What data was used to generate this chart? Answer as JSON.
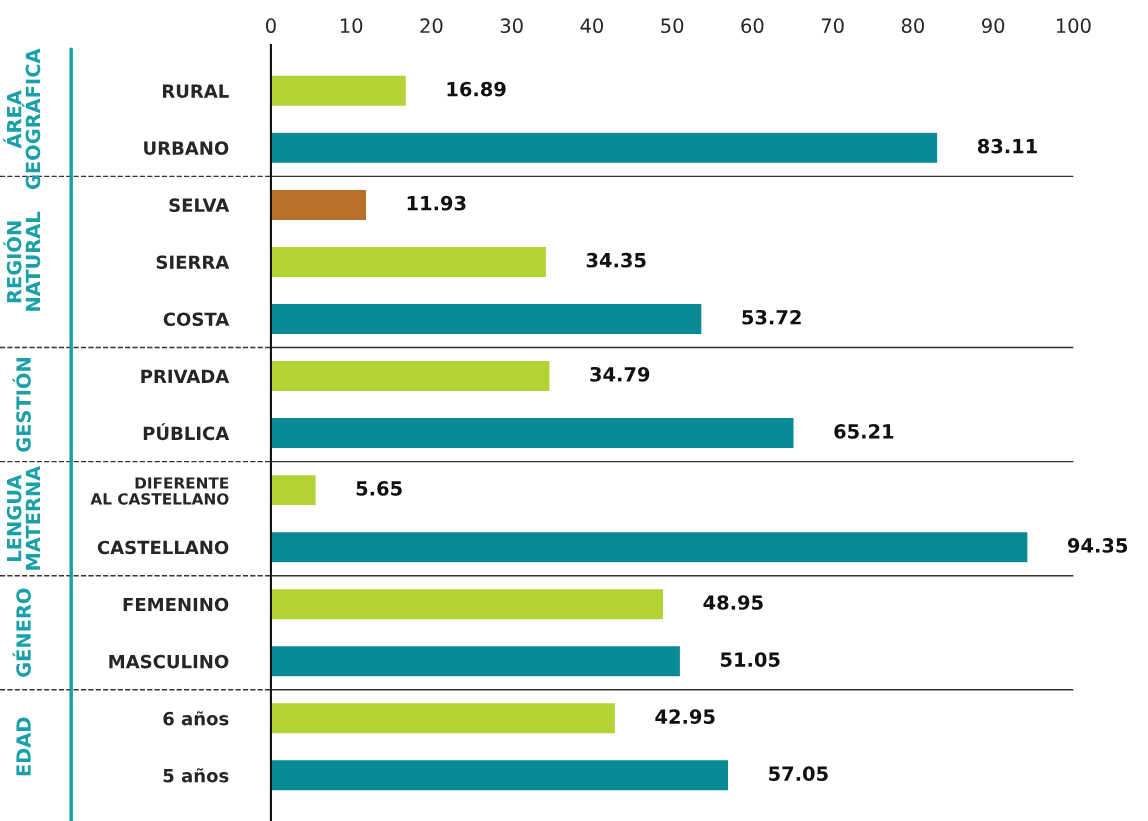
{
  "chart_data": {
    "type": "bar",
    "orientation": "horizontal",
    "categories": [
      "RURAL",
      "URBANO",
      "SELVA",
      "SIERRA",
      "COSTA",
      "PRIVADA",
      "PÚBLICA",
      "DIFERENTE\nAL CASTELLANO",
      "CASTELLANO",
      "FEMENINO",
      "MASCULINO",
      "6 años",
      "5 años"
    ],
    "values": [
      16.89,
      83.11,
      11.93,
      34.35,
      53.72,
      34.79,
      65.21,
      5.65,
      94.35,
      48.95,
      51.05,
      42.95,
      57.05
    ],
    "colors": [
      "#b3d234",
      "#0a8a94",
      "#b8702a",
      "#b3d234",
      "#0a8a94",
      "#b3d234",
      "#0a8a94",
      "#b3d234",
      "#0a8a94",
      "#b3d234",
      "#0a8a94",
      "#b3d234",
      "#0a8a94"
    ],
    "xlim": [
      0,
      100
    ],
    "xticks": [
      0,
      10,
      20,
      30,
      40,
      50,
      60,
      70,
      80,
      90,
      100
    ],
    "data_labels": true,
    "grid": false,
    "legend": false,
    "annotations": [
      "ÁREA\nGEOGRÁFICA",
      "REGIÓN\nNATURAL",
      "GESTIÓN",
      "LENGUA\nMATERNA",
      "GÉNERO",
      "EDAD"
    ]
  }
}
